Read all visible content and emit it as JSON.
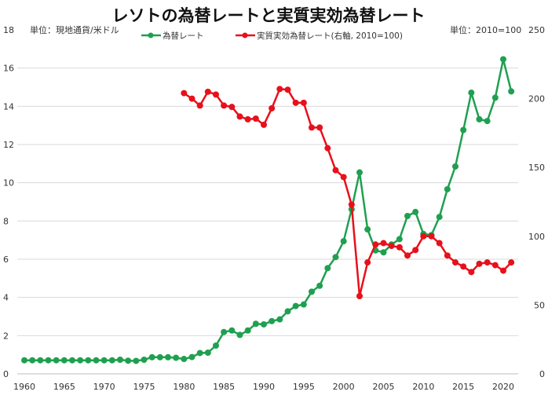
{
  "chart_data": {
    "type": "line",
    "title": "レソトの為替レートと実質実効為替レート",
    "left_unit_label": "単位：現地通貨/米ドル",
    "right_unit_label": "単位：2010=100",
    "x_ticks": [
      1960,
      1965,
      1970,
      1975,
      1980,
      1985,
      1990,
      1995,
      2000,
      2005,
      2010,
      2015,
      2020
    ],
    "ylim_left": [
      0,
      18
    ],
    "yticks_left": [
      0,
      2,
      4,
      6,
      8,
      10,
      12,
      14,
      16,
      18
    ],
    "ylim_right": [
      0,
      250
    ],
    "yticks_right": [
      0,
      50,
      100,
      150,
      200,
      250
    ],
    "grid": true,
    "legend_position": "top-center",
    "series": [
      {
        "name": "為替レート",
        "axis": "left",
        "color": "#1fa050",
        "x": [
          1960,
          1961,
          1962,
          1963,
          1964,
          1965,
          1966,
          1967,
          1968,
          1969,
          1970,
          1971,
          1972,
          1973,
          1974,
          1975,
          1976,
          1977,
          1978,
          1979,
          1980,
          1981,
          1982,
          1983,
          1984,
          1985,
          1986,
          1987,
          1988,
          1989,
          1990,
          1991,
          1992,
          1993,
          1994,
          1995,
          1996,
          1997,
          1998,
          1999,
          2000,
          2001,
          2002,
          2003,
          2004,
          2005,
          2006,
          2007,
          2008,
          2009,
          2010,
          2011,
          2012,
          2013,
          2014,
          2015,
          2016,
          2017,
          2018,
          2019,
          2020,
          2021
        ],
        "values": [
          0.71,
          0.71,
          0.71,
          0.71,
          0.71,
          0.71,
          0.71,
          0.71,
          0.71,
          0.71,
          0.71,
          0.71,
          0.74,
          0.69,
          0.68,
          0.74,
          0.87,
          0.87,
          0.87,
          0.84,
          0.78,
          0.88,
          1.09,
          1.11,
          1.48,
          2.19,
          2.27,
          2.04,
          2.27,
          2.62,
          2.59,
          2.76,
          2.85,
          3.27,
          3.55,
          3.63,
          4.3,
          4.61,
          5.53,
          6.11,
          6.94,
          8.61,
          10.54,
          7.56,
          6.46,
          6.36,
          6.77,
          7.05,
          8.26,
          8.47,
          7.32,
          7.26,
          8.21,
          9.66,
          10.85,
          12.76,
          14.71,
          13.32,
          13.23,
          14.45,
          16.46,
          14.78
        ]
      },
      {
        "name": "実質実効為替レート(右軸, 2010=100)",
        "axis": "right",
        "color": "#e8101a",
        "x": [
          1980,
          1981,
          1982,
          1983,
          1984,
          1985,
          1986,
          1987,
          1988,
          1989,
          1990,
          1991,
          1992,
          1993,
          1994,
          1995,
          1996,
          1997,
          1998,
          1999,
          2000,
          2001,
          2002,
          2003,
          2004,
          2005,
          2006,
          2007,
          2008,
          2009,
          2010,
          2011,
          2012,
          2013,
          2014,
          2015,
          2016,
          2017,
          2018,
          2019,
          2020,
          2021
        ],
        "values": [
          204,
          200,
          195,
          205,
          203,
          195,
          194,
          187,
          185,
          185.5,
          181,
          193,
          207,
          206.5,
          197,
          197,
          179,
          179,
          164,
          148,
          143,
          123,
          56.5,
          81,
          94,
          95,
          93,
          92,
          86,
          90,
          100,
          100,
          95,
          86,
          81,
          78,
          74,
          80,
          81,
          79,
          75,
          81
        ]
      }
    ]
  }
}
